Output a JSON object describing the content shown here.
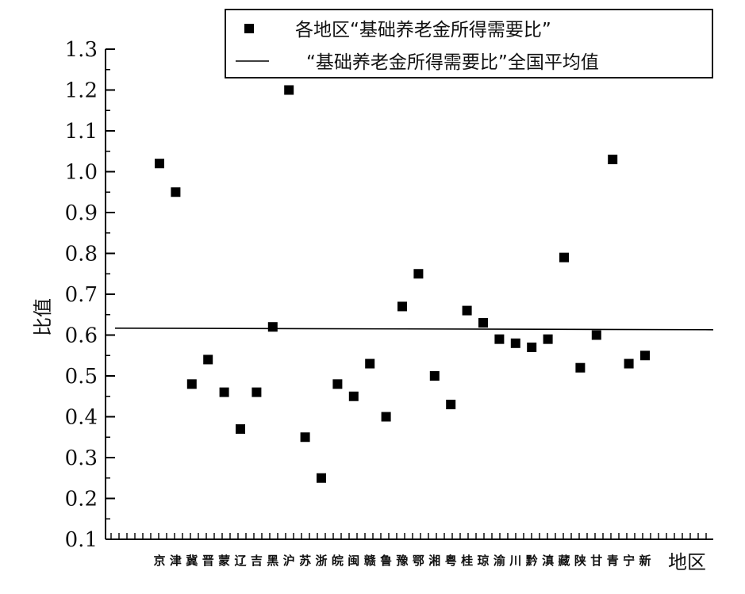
{
  "chart_data": {
    "type": "scatter",
    "xlabel": "地区",
    "ylabel": "比值",
    "ylim": [
      0.1,
      1.3
    ],
    "yticks": [
      "0.1",
      "0.2",
      "0.3",
      "0.4",
      "0.5",
      "0.6",
      "0.7",
      "0.8",
      "0.9",
      "1.0",
      "1.1",
      "1.2",
      "1.3"
    ],
    "categories": [
      "京",
      "津",
      "冀",
      "晋",
      "蒙",
      "辽",
      "吉",
      "黑",
      "沪",
      "苏",
      "浙",
      "皖",
      "闽",
      "赣",
      "鲁",
      "豫",
      "鄂",
      "湘",
      "粤",
      "桂",
      "琼",
      "渝",
      "川",
      "黔",
      "滇",
      "藏",
      "陕",
      "甘",
      "青",
      "宁",
      "新"
    ],
    "series": [
      {
        "name": "各地区“基础养老金所得需要比”",
        "marker": "square",
        "values": [
          1.02,
          0.95,
          0.48,
          0.54,
          0.46,
          0.37,
          0.46,
          0.62,
          1.2,
          0.35,
          0.25,
          0.48,
          0.45,
          0.53,
          0.4,
          0.67,
          0.75,
          0.5,
          0.43,
          0.66,
          0.63,
          0.59,
          0.58,
          0.57,
          0.59,
          0.79,
          0.52,
          0.6,
          1.03,
          0.53,
          0.55
        ]
      }
    ],
    "reference_line": {
      "name": "“基础养老金所得需要比”全国平均值",
      "value": 0.615
    },
    "legend": {
      "position": "top-right"
    },
    "grid": false,
    "colors": {
      "marker": "#000000",
      "line": "#000000"
    }
  }
}
